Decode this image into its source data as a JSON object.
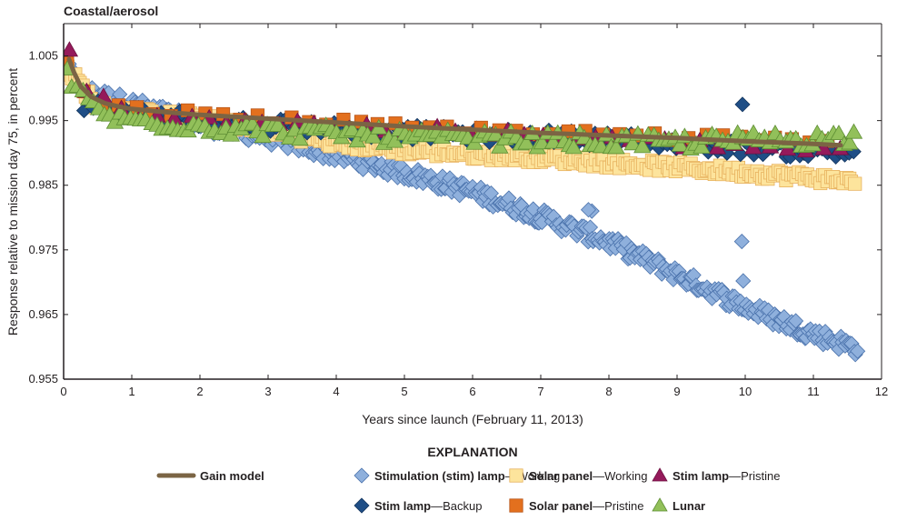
{
  "chart_data": {
    "type": "scatter",
    "title": "Coastal/aerosol",
    "xlabel": "Years since launch (February 11, 2013)",
    "ylabel": "Response relative to mission day 75, in percent",
    "xlim": [
      0,
      12
    ],
    "ylim": [
      0.955,
      1.01
    ],
    "xticks": [
      0,
      1,
      2,
      3,
      4,
      5,
      6,
      7,
      8,
      9,
      10,
      11,
      12
    ],
    "xtick_labels": [
      "0",
      "1",
      "2",
      "3",
      "4",
      "5",
      "6",
      "7",
      "8",
      "9",
      "10",
      "11",
      "12"
    ],
    "yticks": [
      0.955,
      0.965,
      0.975,
      0.985,
      0.995,
      1.005
    ],
    "ytick_labels": [
      "0.955",
      "0.965",
      "0.975",
      "0.985",
      "0.995",
      "1.005"
    ],
    "grid": false,
    "legend": {
      "heading": "EXPLANATION",
      "placement": "bottom"
    },
    "series": [
      {
        "key": "stim_working",
        "name_bold": "Stimulation (stim) lamp",
        "name_normal": "—Working",
        "marker": "diamond",
        "fill": "#8fb0dc",
        "stroke": "#4a72ac",
        "x_range": [
          0.05,
          11.65
        ],
        "count": 420,
        "anchors": [
          [
            0.05,
            1.003
          ],
          [
            0.3,
            0.9995
          ],
          [
            1.0,
            0.9975
          ],
          [
            2.0,
            0.9945
          ],
          [
            3.0,
            0.9925
          ],
          [
            4.0,
            0.9897
          ],
          [
            5.0,
            0.987
          ],
          [
            6.0,
            0.984
          ],
          [
            7.0,
            0.9802
          ],
          [
            8.0,
            0.9762
          ],
          [
            9.0,
            0.9712
          ],
          [
            10.0,
            0.9662
          ],
          [
            11.0,
            0.962
          ],
          [
            11.65,
            0.9598
          ]
        ],
        "spread": 0.0012,
        "outliers": [
          [
            9.95,
            0.9763
          ],
          [
            7.75,
            0.981
          ],
          [
            7.7,
            0.9812
          ],
          [
            9.97,
            0.9702
          ]
        ]
      },
      {
        "key": "solar_working",
        "name_bold": "Solar panel",
        "name_normal": "—Working",
        "marker": "square",
        "fill": "#fde49c",
        "stroke": "#e7b15e",
        "x_range": [
          0.05,
          11.6
        ],
        "count": 300,
        "anchors": [
          [
            0.05,
            1.003
          ],
          [
            0.5,
            0.9972
          ],
          [
            1.0,
            0.9963
          ],
          [
            2.0,
            0.9952
          ],
          [
            3.0,
            0.9935
          ],
          [
            4.0,
            0.9915
          ],
          [
            5.0,
            0.9905
          ],
          [
            6.0,
            0.9898
          ],
          [
            7.0,
            0.9893
          ],
          [
            8.0,
            0.9885
          ],
          [
            9.0,
            0.9878
          ],
          [
            10.0,
            0.987
          ],
          [
            11.0,
            0.9862
          ],
          [
            11.6,
            0.9855
          ]
        ],
        "spread": 0.0008
      },
      {
        "key": "stim_backup",
        "name_bold": "Stim lamp",
        "name_normal": "—Backup",
        "marker": "diamond",
        "fill": "#1f4e86",
        "stroke": "#14365e",
        "x_range": [
          0.3,
          11.6
        ],
        "count": 170,
        "anchors": [
          [
            0.3,
            0.9975
          ],
          [
            1.0,
            0.9962
          ],
          [
            2.0,
            0.9952
          ],
          [
            3.0,
            0.9945
          ],
          [
            4.0,
            0.9938
          ],
          [
            5.0,
            0.9932
          ],
          [
            6.0,
            0.9928
          ],
          [
            7.0,
            0.9925
          ],
          [
            8.0,
            0.9922
          ],
          [
            9.0,
            0.9915
          ],
          [
            10.0,
            0.9908
          ],
          [
            11.0,
            0.9902
          ],
          [
            11.6,
            0.99
          ]
        ],
        "spread": 0.0011,
        "outliers": [
          [
            9.96,
            0.9975
          ]
        ]
      },
      {
        "key": "solar_pristine",
        "name_bold": "Solar panel",
        "name_normal": "—Pristine",
        "marker": "square",
        "fill": "#e3701e",
        "stroke": "#b8561a",
        "x_range": [
          0.05,
          11.2
        ],
        "count": 45,
        "anchors": [
          [
            0.05,
            1.004
          ],
          [
            0.4,
            0.998
          ],
          [
            1.0,
            0.9965
          ],
          [
            3.0,
            0.9952
          ],
          [
            5.0,
            0.994
          ],
          [
            7.0,
            0.9932
          ],
          [
            9.0,
            0.9925
          ],
          [
            11.2,
            0.9915
          ]
        ],
        "spread": 0.0007
      },
      {
        "key": "stim_pristine",
        "name_bold": "Stim lamp",
        "name_normal": "—Pristine",
        "marker": "triangle",
        "fill": "#951a5b",
        "stroke": "#6e1242",
        "x_range": [
          0.08,
          11.4
        ],
        "count": 45,
        "anchors": [
          [
            0.08,
            1.0055
          ],
          [
            0.4,
            0.999
          ],
          [
            1.0,
            0.9962
          ],
          [
            3.0,
            0.9948
          ],
          [
            5.0,
            0.9935
          ],
          [
            7.0,
            0.9925
          ],
          [
            9.0,
            0.9915
          ],
          [
            11.4,
            0.9902
          ]
        ],
        "spread": 0.0008
      },
      {
        "key": "lunar",
        "name_bold": "Lunar",
        "name_normal": "",
        "marker": "triangle",
        "fill": "#92c05a",
        "stroke": "#5e8e34",
        "x_range": [
          0.05,
          11.6
        ],
        "count": 150,
        "anchors": [
          [
            0.05,
            1.002
          ],
          [
            0.3,
            0.9985
          ],
          [
            0.7,
            0.9955
          ],
          [
            1.0,
            0.995
          ],
          [
            2.0,
            0.9942
          ],
          [
            3.0,
            0.9935
          ],
          [
            4.0,
            0.993
          ],
          [
            5.0,
            0.9925
          ],
          [
            6.0,
            0.9922
          ],
          [
            7.0,
            0.992
          ],
          [
            8.0,
            0.9918
          ],
          [
            9.0,
            0.9916
          ],
          [
            10.0,
            0.992
          ],
          [
            11.0,
            0.9922
          ],
          [
            11.6,
            0.9925
          ]
        ],
        "spread": 0.0012
      },
      {
        "key": "gain_model",
        "name_bold": "Gain model",
        "name_normal": "",
        "marker": "line",
        "stroke": "#7b6444",
        "points": [
          [
            0.08,
            1.0045
          ],
          [
            0.15,
            1.0025
          ],
          [
            0.25,
            1.0003
          ],
          [
            0.4,
            0.9987
          ],
          [
            0.6,
            0.9977
          ],
          [
            0.8,
            0.9972
          ],
          [
            1.0,
            0.9968
          ],
          [
            1.5,
            0.9963
          ],
          [
            2.0,
            0.9959
          ],
          [
            3.0,
            0.9953
          ],
          [
            4.0,
            0.9947
          ],
          [
            5.0,
            0.9941
          ],
          [
            6.0,
            0.9936
          ],
          [
            7.0,
            0.9931
          ],
          [
            8.0,
            0.9927
          ],
          [
            9.0,
            0.9923
          ],
          [
            10.0,
            0.9918
          ],
          [
            11.0,
            0.9914
          ],
          [
            11.4,
            0.9912
          ]
        ]
      }
    ],
    "legend_order": [
      [
        "gain_model",
        "stim_working",
        "solar_working",
        "stim_pristine"
      ],
      [
        "stim_backup",
        "solar_pristine",
        "lunar"
      ]
    ]
  }
}
